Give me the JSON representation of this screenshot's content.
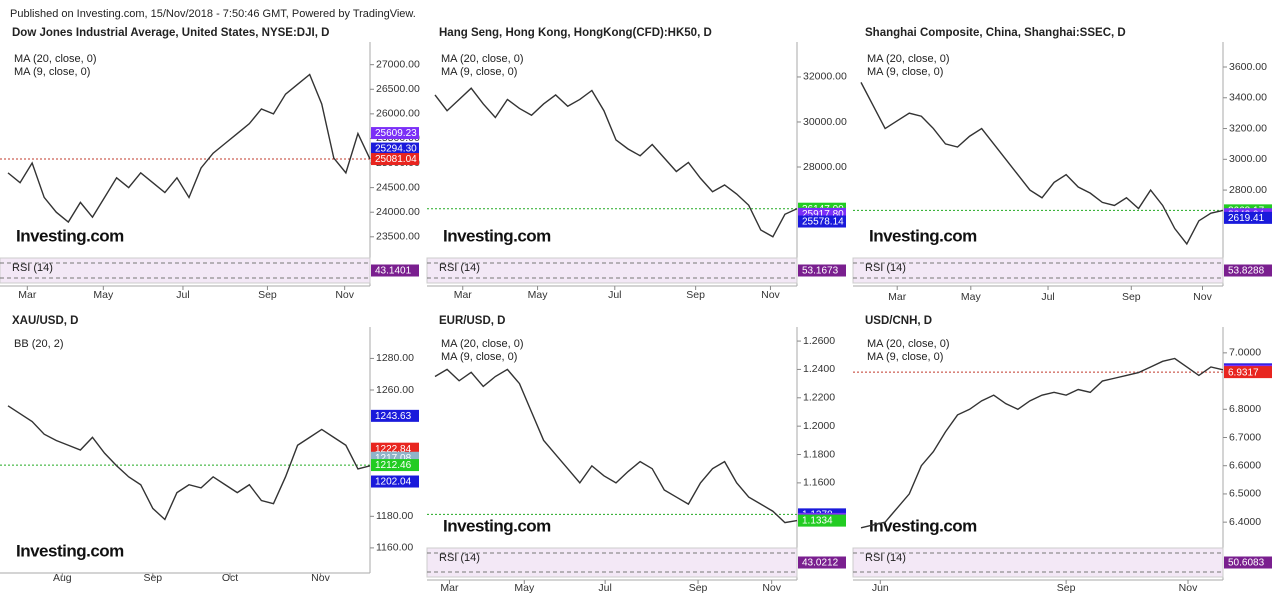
{
  "header": "Published on Investing.com, 15/Nov/2018 - 7:50:46 GMT, Powered by TradingView.",
  "chart_data": [
    {
      "type": "line",
      "title": "Dow Jones Industrial Average, United States, NYSE:DJI, D",
      "indicators": [
        "MA (20, close, 0)",
        "MA (9, close, 0)"
      ],
      "watermark": "Investing.com",
      "values": [
        24800,
        24600,
        25000,
        24300,
        24000,
        23800,
        24200,
        23900,
        24300,
        24700,
        24500,
        24800,
        24600,
        24400,
        24700,
        24300,
        24900,
        25200,
        25400,
        25600,
        25800,
        26100,
        26000,
        26400,
        26600,
        26800,
        26200,
        25100,
        24800,
        25600,
        25080
      ],
      "color": "#333333",
      "ylim": [
        23130,
        27400
      ],
      "yticks": [
        {
          "value": 23500,
          "label": "23500.00"
        },
        {
          "value": 24000,
          "label": "24000.00"
        },
        {
          "value": 24500,
          "label": "24500.00"
        },
        {
          "value": 25000,
          "label": "25000.00"
        },
        {
          "value": 25500,
          "label": "25500.00"
        },
        {
          "value": 26000,
          "label": "26000.00"
        },
        {
          "value": 26500,
          "label": "26500.00"
        },
        {
          "value": 27000,
          "label": "27000.00"
        }
      ],
      "xlim": [
        0,
        30
      ],
      "xticks": [
        {
          "value": 1.6,
          "label": "Mar"
        },
        {
          "value": 7.9,
          "label": "May"
        },
        {
          "value": 14.5,
          "label": "Jul"
        },
        {
          "value": 21.5,
          "label": "Sep"
        },
        {
          "value": 27.9,
          "label": "Nov"
        }
      ],
      "price_tags": [
        {
          "value": 25609.23,
          "label": "25609.23",
          "color": "#7b2ff7"
        },
        {
          "value": 25294.3,
          "label": "25294.30",
          "color": "#1a1adb"
        },
        {
          "value": 25081.04,
          "label": "25081.04",
          "color": "#e8251f"
        }
      ],
      "ref_line": {
        "value": 25081.04,
        "color": "#c0392b"
      },
      "rsi_label": "RSI (14)",
      "rsi_value": 43.1401,
      "rsi_color": "#7a1f8f"
    },
    {
      "type": "line",
      "title": "Hang Seng, Hong Kong, HongKong(CFD):HK50, D",
      "indicators": [
        "MA (20, close, 0)",
        "MA (9, close, 0)"
      ],
      "watermark": "Investing.com",
      "values": [
        31200,
        30500,
        31000,
        31500,
        30800,
        30200,
        31000,
        30600,
        30300,
        30800,
        31200,
        30700,
        31000,
        31400,
        30500,
        29200,
        28800,
        28500,
        29000,
        28400,
        27800,
        28200,
        27500,
        26900,
        27200,
        26800,
        26300,
        25200,
        24900,
        25900,
        26147
      ],
      "color": "#333333",
      "ylim": [
        24090,
        33420
      ],
      "yticks": [
        {
          "value": 28000,
          "label": "28000.00"
        },
        {
          "value": 30000,
          "label": "30000.00"
        },
        {
          "value": 32000,
          "label": "32000.00"
        }
      ],
      "xlim": [
        0,
        30
      ],
      "xticks": [
        {
          "value": 2.3,
          "label": "Mar"
        },
        {
          "value": 8.5,
          "label": "May"
        },
        {
          "value": 14.9,
          "label": "Jul"
        },
        {
          "value": 21.6,
          "label": "Sep"
        },
        {
          "value": 27.8,
          "label": "Nov"
        }
      ],
      "price_tags": [
        {
          "value": 26147,
          "label": "26147.00",
          "color": "#22cc22"
        },
        {
          "value": 25917.8,
          "label": "25917.80",
          "color": "#7b2ff7"
        },
        {
          "value": 25578.14,
          "label": "25578.14",
          "color": "#1a1adb"
        }
      ],
      "ref_line": {
        "value": 26147,
        "color": "#22aa22"
      },
      "rsi_label": "RSI (14)",
      "rsi_value": 53.1673,
      "rsi_color": "#7a1f8f"
    },
    {
      "type": "line",
      "title": "Shanghai Composite, China, Shanghai:SSEC, D",
      "indicators": [
        "MA (20, close, 0)",
        "MA (9, close, 0)"
      ],
      "watermark": "Investing.com",
      "values": [
        3500,
        3350,
        3200,
        3250,
        3300,
        3280,
        3200,
        3100,
        3080,
        3150,
        3200,
        3100,
        3000,
        2900,
        2800,
        2750,
        2850,
        2900,
        2820,
        2780,
        2720,
        2700,
        2750,
        2680,
        2800,
        2700,
        2550,
        2450,
        2600,
        2650,
        2668
      ],
      "color": "#333333",
      "ylim": [
        2378,
        3743
      ],
      "yticks": [
        {
          "value": 2800,
          "label": "2800.00"
        },
        {
          "value": 3000,
          "label": "3000.00"
        },
        {
          "value": 3200,
          "label": "3200.00"
        },
        {
          "value": 3400,
          "label": "3400.00"
        },
        {
          "value": 3600,
          "label": "3600.00"
        }
      ],
      "xlim": [
        0,
        30
      ],
      "xticks": [
        {
          "value": 3.0,
          "label": "Mar"
        },
        {
          "value": 9.1,
          "label": "May"
        },
        {
          "value": 15.5,
          "label": "Jul"
        },
        {
          "value": 22.4,
          "label": "Sep"
        },
        {
          "value": 28.3,
          "label": "Nov"
        }
      ],
      "price_tags": [
        {
          "value": 2668.17,
          "label": "2668.17",
          "color": "#22cc22"
        },
        {
          "value": 2642.94,
          "label": "2642.94",
          "color": "#7b2ff7"
        },
        {
          "value": 2619.41,
          "label": "2619.41",
          "color": "#1a1adb"
        }
      ],
      "ref_line": {
        "value": 2668.17,
        "color": "#22aa22"
      },
      "rsi_label": "RSI (14)",
      "rsi_value": 53.8288,
      "rsi_color": "#7a1f8f"
    },
    {
      "type": "line",
      "title": "XAU/USD, D",
      "indicators": [
        "BB (20, 2)"
      ],
      "watermark": "Investing.com",
      "values": [
        1250,
        1245,
        1240,
        1232,
        1228,
        1225,
        1222,
        1230,
        1220,
        1212,
        1205,
        1200,
        1185,
        1178,
        1195,
        1200,
        1198,
        1205,
        1200,
        1195,
        1200,
        1190,
        1188,
        1205,
        1225,
        1230,
        1235,
        1230,
        1225,
        1210,
        1212
      ],
      "color": "#333333",
      "ylim": [
        1146,
        1298
      ],
      "yticks": [
        {
          "value": 1160,
          "label": "1160.00"
        },
        {
          "value": 1180,
          "label": "1180.00"
        },
        {
          "value": 1260,
          "label": "1260.00"
        },
        {
          "value": 1280,
          "label": "1280.00"
        }
      ],
      "xlim": [
        0,
        30
      ],
      "xticks": [
        {
          "value": 4.5,
          "label": "Aug"
        },
        {
          "value": 12,
          "label": "Sep"
        },
        {
          "value": 18.4,
          "label": "Oct"
        },
        {
          "value": 25.9,
          "label": "Nov"
        }
      ],
      "price_tags": [
        {
          "value": 1243.63,
          "label": "1243.63",
          "color": "#1a1adb"
        },
        {
          "value": 1222.84,
          "label": "1222.84",
          "color": "#e8251f"
        },
        {
          "value": 1217.08,
          "label": "1217.08",
          "color": "#8fb3c9"
        },
        {
          "value": 1212.46,
          "label": "1212.46",
          "color": "#22cc22"
        },
        {
          "value": 1202.04,
          "label": "1202.04",
          "color": "#1a1adb"
        }
      ],
      "ref_line": {
        "value": 1212.46,
        "color": "#22aa22"
      }
    },
    {
      "type": "line",
      "title": "EUR/USD, D",
      "indicators": [
        "MA (20, close, 0)",
        "MA (9, close, 0)"
      ],
      "watermark": "Investing.com",
      "values": [
        1.235,
        1.24,
        1.232,
        1.238,
        1.228,
        1.235,
        1.24,
        1.23,
        1.21,
        1.19,
        1.18,
        1.17,
        1.16,
        1.172,
        1.165,
        1.16,
        1.168,
        1.175,
        1.17,
        1.155,
        1.15,
        1.145,
        1.16,
        1.17,
        1.175,
        1.16,
        1.15,
        1.145,
        1.14,
        1.132,
        1.1334
      ],
      "color": "#333333",
      "ylim": [
        1.1162,
        1.2678
      ],
      "yticks": [
        {
          "value": 1.16,
          "label": "1.1600"
        },
        {
          "value": 1.18,
          "label": "1.1800"
        },
        {
          "value": 1.2,
          "label": "1.2000"
        },
        {
          "value": 1.22,
          "label": "1.2200"
        },
        {
          "value": 1.24,
          "label": "1.2400"
        },
        {
          "value": 1.26,
          "label": "1.2600"
        }
      ],
      "xlim": [
        0,
        30
      ],
      "xticks": [
        {
          "value": 1.2,
          "label": "Mar"
        },
        {
          "value": 7.4,
          "label": "May"
        },
        {
          "value": 14.1,
          "label": "Jul"
        },
        {
          "value": 21.8,
          "label": "Sep"
        },
        {
          "value": 27.9,
          "label": "Nov"
        }
      ],
      "price_tags": [
        {
          "value": 1.1378,
          "label": "1.1378",
          "color": "#1a1adb"
        },
        {
          "value": 1.1346,
          "label": "1.1346",
          "color": "#7b2ff7"
        },
        {
          "value": 1.1334,
          "label": "1.1334",
          "color": "#22cc22"
        }
      ],
      "ref_line": {
        "value": 1.1378,
        "color": "#22aa22"
      },
      "rsi_label": "RSI (14)",
      "rsi_value": 43.0212,
      "rsi_color": "#7a1f8f"
    },
    {
      "type": "line",
      "title": "USD/CNH, D",
      "indicators": [
        "MA (20, close, 0)",
        "MA (9, close, 0)"
      ],
      "watermark": "Investing.com",
      "values": [
        6.38,
        6.39,
        6.4,
        6.45,
        6.5,
        6.6,
        6.65,
        6.72,
        6.78,
        6.8,
        6.83,
        6.85,
        6.82,
        6.8,
        6.83,
        6.85,
        6.86,
        6.85,
        6.87,
        6.86,
        6.9,
        6.91,
        6.92,
        6.93,
        6.95,
        6.97,
        6.98,
        6.95,
        6.92,
        6.95,
        6.94
      ],
      "color": "#333333",
      "ylim": [
        6.319,
        7.081
      ],
      "yticks": [
        {
          "value": 6.4,
          "label": "6.4000"
        },
        {
          "value": 6.5,
          "label": "6.5000"
        },
        {
          "value": 6.6,
          "label": "6.6000"
        },
        {
          "value": 6.7,
          "label": "6.7000"
        },
        {
          "value": 6.8,
          "label": "6.8000"
        },
        {
          "value": 7,
          "label": "7.0000"
        }
      ],
      "xlim": [
        0,
        30
      ],
      "xticks": [
        {
          "value": 1.6,
          "label": "Jun"
        },
        {
          "value": 17,
          "label": "Sep"
        },
        {
          "value": 27.1,
          "label": "Nov"
        }
      ],
      "price_tags": [
        {
          "value": 6.9416,
          "label": "6.9416",
          "color": "#1a1adb"
        },
        {
          "value": 6.9369,
          "label": "6.9369",
          "color": "#7b2ff7"
        },
        {
          "value": 6.9317,
          "label": "6.9317",
          "color": "#e8251f"
        }
      ],
      "ref_line": {
        "value": 6.9317,
        "color": "#c0392b"
      },
      "rsi_label": "RSI (14)",
      "rsi_value": 50.6083,
      "rsi_color": "#7a1f8f"
    }
  ]
}
